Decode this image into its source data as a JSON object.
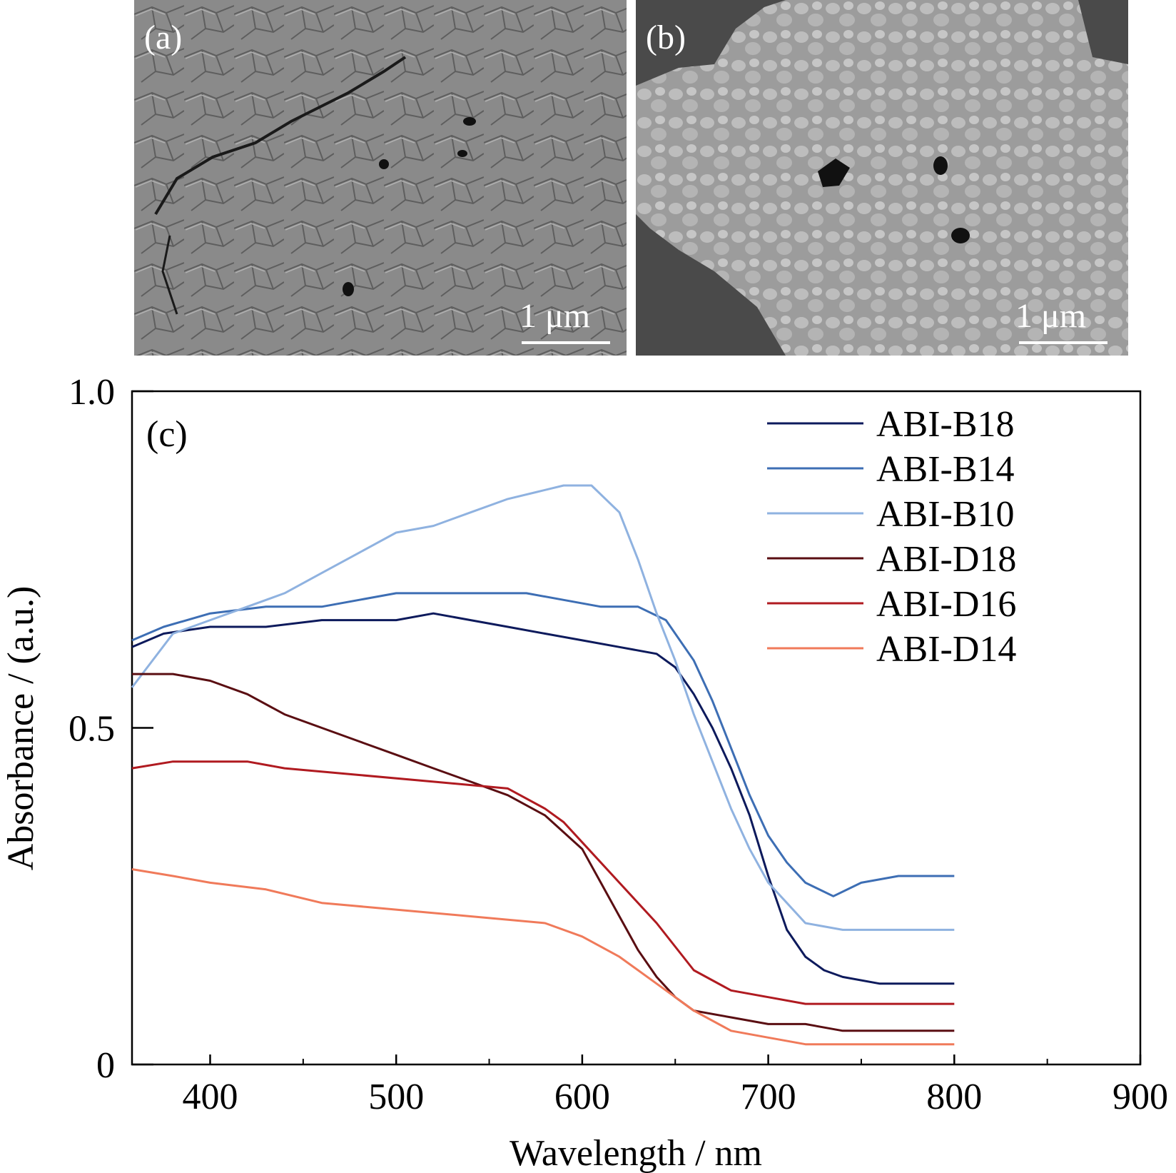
{
  "panels": {
    "a": {
      "label": "(a)",
      "scale_bar": "1 μm"
    },
    "b": {
      "label": "(b)",
      "scale_bar": "1 μm"
    }
  },
  "colors": {
    "ABI-B18": "#0d1a5c",
    "ABI-B14": "#3d6eb4",
    "ABI-B10": "#8fb2e0",
    "ABI-D18": "#5a0e12",
    "ABI-D16": "#b01a20",
    "ABI-D14": "#f07a5a"
  },
  "chart_data": {
    "type": "line",
    "panel_label": "(c)",
    "xlabel": "Wavelength / nm",
    "ylabel": "Absorbance / (a.u.)",
    "xlim": [
      358,
      900
    ],
    "ylim": [
      0,
      1.0
    ],
    "x_ticks": [
      400,
      500,
      600,
      700,
      800,
      900
    ],
    "x_tick_labels": [
      "400",
      "500",
      "600",
      "700",
      "800",
      "900"
    ],
    "y_ticks": [
      0,
      0.5,
      1.0
    ],
    "y_tick_labels": [
      "0",
      "0.5",
      "1.0"
    ],
    "grid": false,
    "legend_position": "top-right",
    "series": [
      {
        "name": "ABI-B18",
        "x": [
          358,
          375,
          400,
          430,
          460,
          500,
          520,
          540,
          560,
          580,
          600,
          620,
          640,
          650,
          660,
          670,
          680,
          690,
          700,
          710,
          720,
          730,
          740,
          760,
          780,
          790,
          800
        ],
        "y": [
          0.62,
          0.64,
          0.65,
          0.65,
          0.66,
          0.66,
          0.67,
          0.66,
          0.65,
          0.64,
          0.63,
          0.62,
          0.61,
          0.59,
          0.55,
          0.5,
          0.44,
          0.37,
          0.28,
          0.2,
          0.16,
          0.14,
          0.13,
          0.12,
          0.12,
          0.12,
          0.12
        ]
      },
      {
        "name": "ABI-B14",
        "x": [
          358,
          375,
          400,
          430,
          460,
          500,
          520,
          550,
          570,
          590,
          610,
          630,
          645,
          660,
          670,
          680,
          690,
          700,
          710,
          720,
          735,
          750,
          770,
          790,
          800
        ],
        "y": [
          0.63,
          0.65,
          0.67,
          0.68,
          0.68,
          0.7,
          0.7,
          0.7,
          0.7,
          0.69,
          0.68,
          0.68,
          0.66,
          0.6,
          0.54,
          0.47,
          0.4,
          0.34,
          0.3,
          0.27,
          0.25,
          0.27,
          0.28,
          0.28,
          0.28
        ]
      },
      {
        "name": "ABI-B10",
        "x": [
          358,
          380,
          400,
          420,
          440,
          460,
          480,
          500,
          520,
          540,
          560,
          575,
          590,
          605,
          620,
          630,
          640,
          650,
          660,
          670,
          680,
          690,
          700,
          710,
          720,
          740,
          760,
          780,
          800
        ],
        "y": [
          0.56,
          0.64,
          0.66,
          0.68,
          0.7,
          0.73,
          0.76,
          0.79,
          0.8,
          0.82,
          0.84,
          0.85,
          0.86,
          0.86,
          0.82,
          0.75,
          0.67,
          0.6,
          0.52,
          0.45,
          0.38,
          0.32,
          0.27,
          0.24,
          0.21,
          0.2,
          0.2,
          0.2,
          0.2
        ]
      },
      {
        "name": "ABI-D18",
        "x": [
          358,
          380,
          400,
          420,
          440,
          460,
          480,
          500,
          520,
          540,
          560,
          580,
          600,
          610,
          620,
          630,
          640,
          650,
          660,
          680,
          700,
          720,
          740,
          760,
          780,
          800
        ],
        "y": [
          0.58,
          0.58,
          0.57,
          0.55,
          0.52,
          0.5,
          0.48,
          0.46,
          0.44,
          0.42,
          0.4,
          0.37,
          0.32,
          0.27,
          0.22,
          0.17,
          0.13,
          0.1,
          0.08,
          0.07,
          0.06,
          0.06,
          0.05,
          0.05,
          0.05,
          0.05
        ]
      },
      {
        "name": "ABI-D16",
        "x": [
          358,
          380,
          400,
          420,
          440,
          480,
          520,
          560,
          580,
          590,
          600,
          620,
          640,
          660,
          680,
          700,
          720,
          740,
          760,
          780,
          800
        ],
        "y": [
          0.44,
          0.45,
          0.45,
          0.45,
          0.44,
          0.43,
          0.42,
          0.41,
          0.38,
          0.36,
          0.33,
          0.27,
          0.21,
          0.14,
          0.11,
          0.1,
          0.09,
          0.09,
          0.09,
          0.09,
          0.09
        ]
      },
      {
        "name": "ABI-D14",
        "x": [
          358,
          380,
          400,
          430,
          460,
          500,
          540,
          580,
          600,
          620,
          640,
          660,
          680,
          700,
          720,
          740,
          760,
          780,
          800
        ],
        "y": [
          0.29,
          0.28,
          0.27,
          0.26,
          0.24,
          0.23,
          0.22,
          0.21,
          0.19,
          0.16,
          0.12,
          0.08,
          0.05,
          0.04,
          0.03,
          0.03,
          0.03,
          0.03,
          0.03
        ]
      }
    ]
  }
}
